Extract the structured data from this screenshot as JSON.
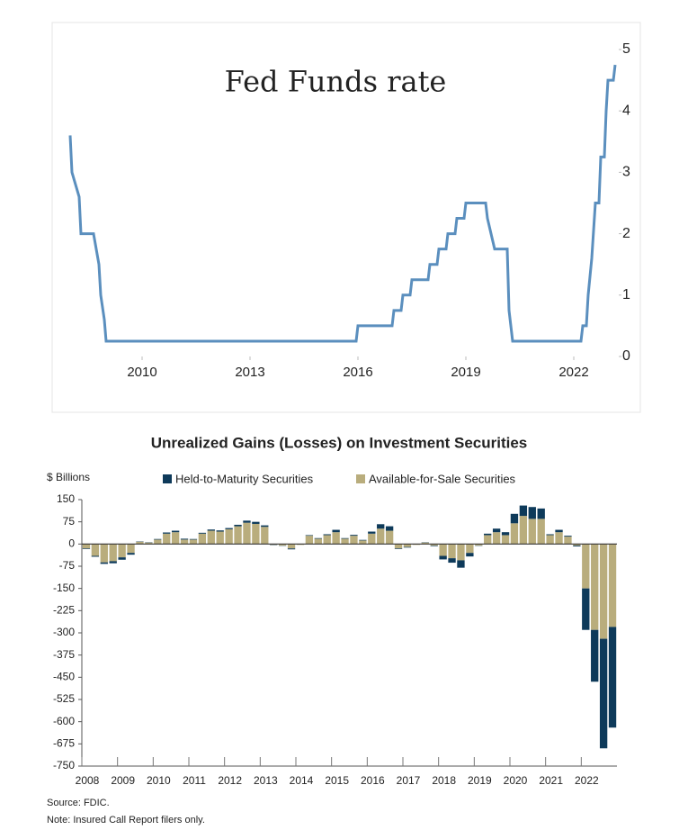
{
  "chart_data": [
    {
      "type": "line",
      "title": "Fed Funds rate",
      "color": "#5b8fbe",
      "x": [
        2008.0,
        2008.05,
        2008.25,
        2008.3,
        2008.65,
        2008.8,
        2008.85,
        2008.95,
        2009.0,
        2015.95,
        2016.0,
        2016.95,
        2017.0,
        2017.2,
        2017.25,
        2017.45,
        2017.5,
        2017.95,
        2018.0,
        2018.2,
        2018.25,
        2018.45,
        2018.5,
        2018.7,
        2018.75,
        2018.95,
        2019.0,
        2019.55,
        2019.6,
        2019.7,
        2019.8,
        2020.15,
        2020.2,
        2020.3,
        2022.2,
        2022.25,
        2022.35,
        2022.4,
        2022.5,
        2022.6,
        2022.7,
        2022.75,
        2022.85,
        2022.9,
        2022.95,
        2023.1,
        2023.15
      ],
      "values": [
        3.6,
        3.0,
        2.6,
        2.0,
        2.0,
        1.5,
        1.0,
        0.6,
        0.25,
        0.25,
        0.5,
        0.5,
        0.75,
        0.75,
        1.0,
        1.0,
        1.25,
        1.25,
        1.5,
        1.5,
        1.75,
        1.75,
        2.0,
        2.0,
        2.25,
        2.25,
        2.5,
        2.5,
        2.25,
        2.0,
        1.75,
        1.75,
        0.75,
        0.25,
        0.25,
        0.5,
        0.5,
        1.0,
        1.6,
        2.5,
        2.5,
        3.25,
        3.25,
        4.0,
        4.5,
        4.5,
        4.75
      ],
      "xlim": [
        2007.55,
        2023.25
      ],
      "xticks": [
        2010,
        2013,
        2016,
        2019,
        2022
      ],
      "ylim": [
        0,
        5
      ],
      "yticks": [
        0,
        1,
        2,
        3,
        4,
        5
      ]
    },
    {
      "type": "bar",
      "title": "Unrealized Gains (Losses) on Investment Securities",
      "y_label": "$ Billions",
      "stacked": true,
      "categories": [
        "2008",
        null,
        null,
        null,
        "2009",
        null,
        null,
        null,
        "2010",
        null,
        null,
        null,
        "2011",
        null,
        null,
        null,
        "2012",
        null,
        null,
        null,
        "2013",
        null,
        null,
        null,
        "2014",
        null,
        null,
        null,
        "2015",
        null,
        null,
        null,
        "2016",
        null,
        null,
        null,
        "2017",
        null,
        null,
        null,
        "2018",
        null,
        null,
        null,
        "2019",
        null,
        null,
        null,
        "2020",
        null,
        null,
        null,
        "2021",
        null,
        null,
        null,
        "2022",
        null,
        null,
        null
      ],
      "series": [
        {
          "name": "Held-to-Maturity Securities",
          "color": "#0e3a5a",
          "values": [
            -2,
            -3,
            -5,
            -7,
            -8,
            -6,
            1,
            1,
            2,
            4,
            5,
            3,
            2,
            3,
            4,
            4,
            4,
            5,
            7,
            7,
            5,
            -1,
            -1,
            -3,
            0,
            2,
            2,
            3,
            8,
            2,
            3,
            2,
            7,
            15,
            15,
            -2,
            -2,
            0,
            1,
            -2,
            -12,
            -15,
            -25,
            -12,
            -1,
            5,
            12,
            10,
            32,
            35,
            40,
            35,
            3,
            8,
            3,
            -3,
            -140,
            -175,
            -370,
            -340
          ]
        },
        {
          "name": "Available-for-Sale Securities",
          "color": "#b9ad7d",
          "values": [
            -15,
            -40,
            -62,
            -58,
            -45,
            -30,
            8,
            5,
            15,
            35,
            40,
            15,
            15,
            35,
            45,
            42,
            50,
            60,
            72,
            68,
            58,
            -3,
            -5,
            -15,
            -3,
            28,
            18,
            30,
            40,
            18,
            28,
            12,
            35,
            52,
            45,
            -15,
            -10,
            -3,
            5,
            -5,
            -40,
            -48,
            -55,
            -30,
            -5,
            30,
            40,
            30,
            70,
            95,
            85,
            85,
            30,
            40,
            25,
            -5,
            -150,
            -290,
            -320,
            -280
          ]
        }
      ],
      "ylim": [
        -750,
        150
      ],
      "yticks": [
        150,
        75,
        0,
        -75,
        -150,
        -225,
        -300,
        -375,
        -450,
        -525,
        -600,
        -675,
        -750
      ],
      "source": "Source: FDIC.",
      "note": "Note: Insured Call Report filers only."
    }
  ]
}
